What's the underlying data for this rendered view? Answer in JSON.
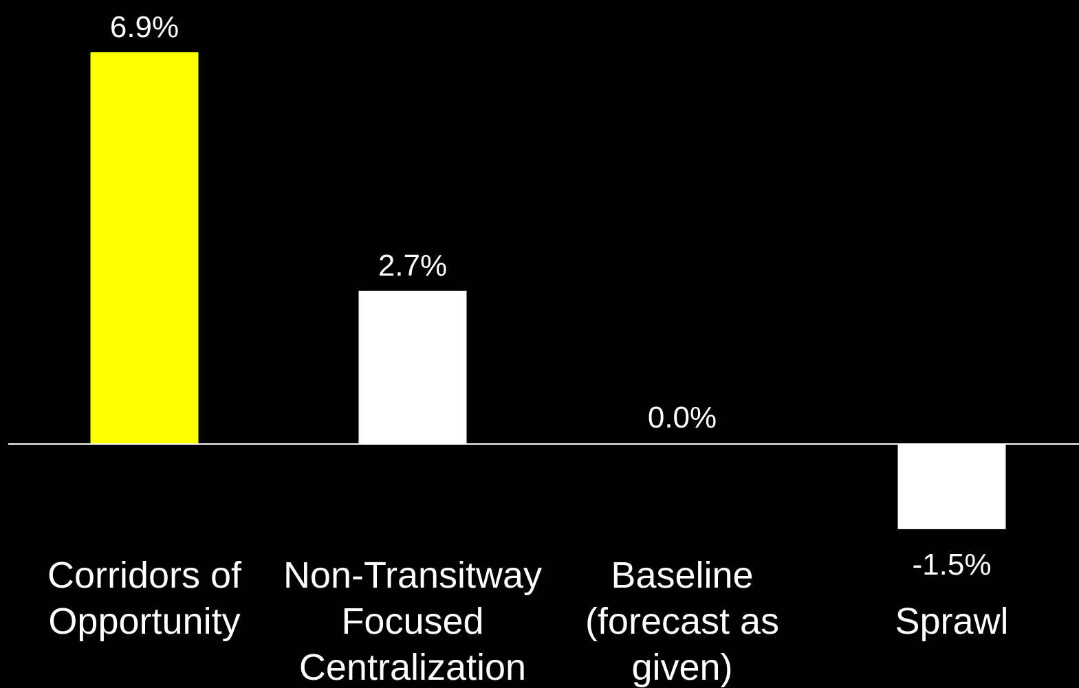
{
  "chart_data": {
    "type": "bar",
    "categories": [
      [
        "Corridors of",
        "Opportunity"
      ],
      [
        "Non-Transitway",
        "Focused",
        "Centralization"
      ],
      [
        "Baseline",
        "(forecast as",
        "given)"
      ],
      [
        "Sprawl"
      ]
    ],
    "values": [
      6.9,
      2.7,
      0.0,
      -1.5
    ],
    "value_labels": [
      "6.9%",
      "2.7%",
      "0.0%",
      "-1.5%"
    ],
    "bar_colors": [
      "#ffff00",
      "#ffffff",
      "#ffffff",
      "#ffffff"
    ],
    "title": "",
    "xlabel": "",
    "ylabel": "",
    "grid": false,
    "legend": "none",
    "colors": {
      "background": "#000000",
      "axis": "#ffffff",
      "text": "#ffffff",
      "highlight": "#ffff00"
    }
  }
}
